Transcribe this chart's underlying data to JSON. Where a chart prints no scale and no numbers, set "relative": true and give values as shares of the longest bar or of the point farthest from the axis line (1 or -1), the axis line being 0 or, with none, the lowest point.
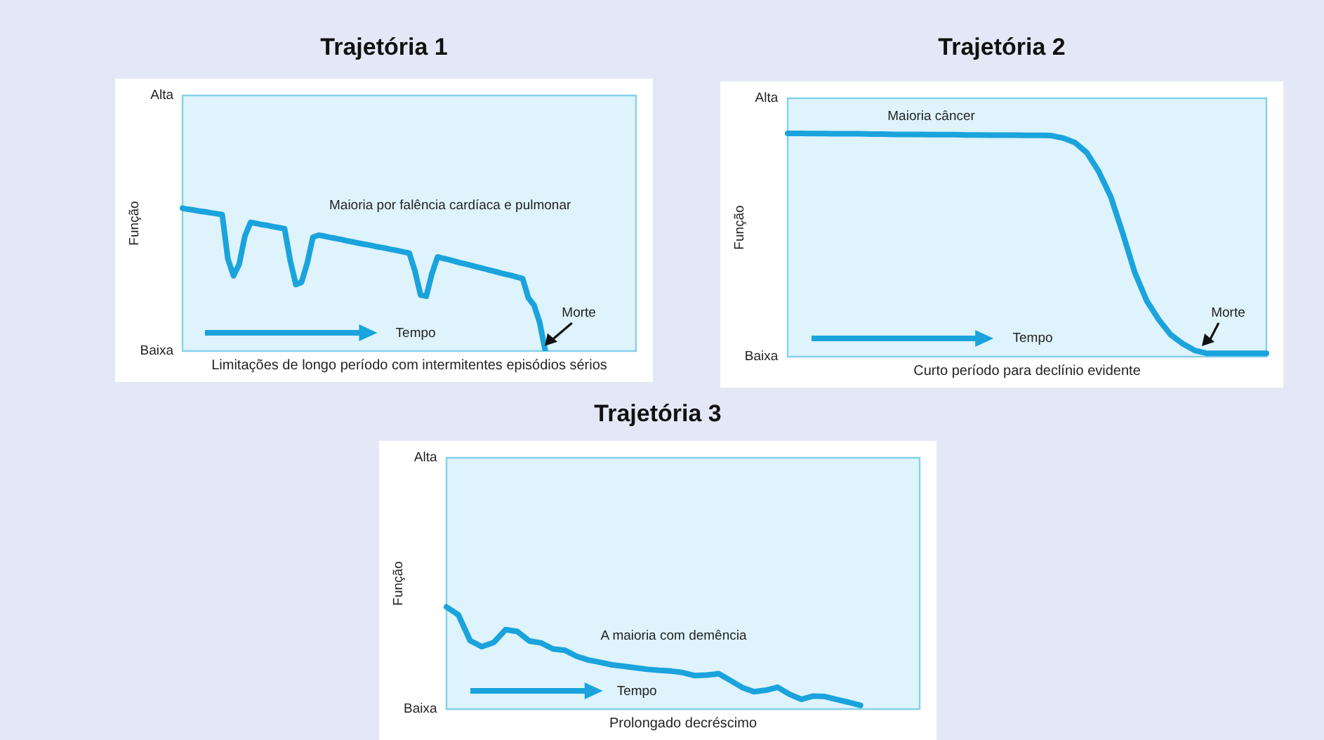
{
  "chart_data": [
    {
      "type": "line",
      "title": "Trajetória 1",
      "xlabel": "Limitações de longo período com intermitentes episódios sérios",
      "ylabel": "Função",
      "relative": true,
      "tick_labels": false,
      "categories": [
        null,
        null,
        null,
        null,
        null,
        null,
        null,
        null,
        null,
        null,
        null,
        null,
        null,
        null,
        null,
        null,
        null,
        null,
        null,
        null,
        null,
        null,
        null,
        null,
        null,
        null,
        null,
        null,
        null,
        null,
        null,
        null,
        null,
        null,
        null,
        null,
        null,
        null,
        null,
        null,
        null,
        null,
        null,
        null,
        null,
        null,
        null,
        null,
        null,
        null,
        null,
        null,
        null,
        null,
        null,
        null,
        null,
        null,
        null,
        null,
        null,
        null,
        null,
        null,
        null,
        null,
        null,
        null,
        null,
        null,
        null,
        null,
        null,
        null,
        null,
        null,
        null,
        null,
        null,
        null,
        null
      ],
      "series": [
        {
          "color": "#1aa3dc",
          "values": [
            1,
            0.993,
            0.987,
            0.98,
            0.975,
            0.968,
            0.962,
            0.955,
            0.645,
            0.527,
            0.609,
            0.805,
            0.901,
            0.894,
            0.885,
            0.88,
            0.871,
            0.864,
            0.857,
            0.634,
            0.466,
            0.482,
            0.616,
            0.797,
            0.812,
            0.805,
            0.796,
            0.789,
            0.781,
            0.772,
            0.765,
            0.756,
            0.749,
            0.742,
            0.733,
            0.726,
            0.719,
            0.71,
            0.703,
            0.694,
            0.686,
            0.561,
            0.392,
            0.384,
            0.543,
            0.659,
            0.649,
            0.64,
            0.629,
            0.618,
            0.609,
            0.599,
            0.588,
            0.579,
            0.568,
            0.559,
            0.548,
            0.538,
            0.529,
            0.518,
            0.507,
            0.373,
            0.321,
            0.201,
            0,
            null,
            null,
            null,
            null,
            null,
            null,
            null,
            null,
            null,
            null,
            null,
            null,
            null,
            null,
            null,
            null
          ]
        }
      ],
      "annotations": [
        "Alta",
        "Baixa",
        "Maioria por falência cardíaca e pulmonar",
        "Morte",
        "Tempo"
      ]
    },
    {
      "type": "line",
      "title": "Trajetória 2",
      "xlabel": "Curto período para declínio evidente",
      "ylabel": "Função",
      "relative": true,
      "tick_labels": false,
      "categories": [
        null,
        null,
        null,
        null,
        null,
        null,
        null,
        null,
        null,
        null,
        null,
        null,
        null,
        null,
        null,
        null,
        null,
        null,
        null,
        null,
        null,
        null,
        null,
        null,
        null,
        null,
        null,
        null,
        null,
        null,
        null,
        null,
        null,
        null,
        null,
        null,
        null,
        null,
        null,
        null,
        null
      ],
      "series": [
        {
          "color": "#1aa3dc",
          "values": [
            1,
            1,
            0.999,
            0.999,
            0.998,
            0.998,
            0.998,
            0.997,
            0.997,
            0.995,
            0.995,
            0.995,
            0.994,
            0.994,
            0.994,
            0.993,
            0.993,
            0.992,
            0.992,
            0.992,
            0.991,
            0.991,
            0.99,
            0.979,
            0.959,
            0.913,
            0.828,
            0.715,
            0.552,
            0.377,
            0.25,
            0.166,
            0.098,
            0.058,
            0.028,
            0.015,
            0.015,
            0.015,
            0.015,
            0.015,
            0.015
          ]
        }
      ],
      "annotations": [
        "Alta",
        "Baixa",
        "Maioria câncer",
        "Morte",
        "Tempo"
      ]
    },
    {
      "type": "line",
      "title": "Trajetória 3",
      "xlabel": "Prolongado decréscimo",
      "ylabel": "Função",
      "relative": true,
      "tick_labels": false,
      "categories": [
        null,
        null,
        null,
        null,
        null,
        null,
        null,
        null,
        null,
        null,
        null,
        null,
        null,
        null,
        null,
        null,
        null,
        null,
        null,
        null,
        null,
        null,
        null,
        null,
        null,
        null,
        null,
        null,
        null,
        null,
        null,
        null,
        null,
        null,
        null,
        null,
        null,
        null,
        null,
        null,
        null
      ],
      "series": [
        {
          "color": "#1aa3dc",
          "values": [
            1,
            0.924,
            0.67,
            0.611,
            0.653,
            0.778,
            0.759,
            0.667,
            0.648,
            0.589,
            0.576,
            0.517,
            0.48,
            0.458,
            0.433,
            0.419,
            0.404,
            0.389,
            0.379,
            0.372,
            0.357,
            0.328,
            0.333,
            0.347,
            0.281,
            0.212,
            0.17,
            0.185,
            0.214,
            0.145,
            0.096,
            0.128,
            0.123,
            0.094,
            0.067,
            0.037,
            null,
            null,
            null,
            null,
            null
          ]
        }
      ],
      "annotations": [
        "Alta",
        "Baixa",
        "A maioria com demência",
        "Tempo"
      ]
    }
  ]
}
